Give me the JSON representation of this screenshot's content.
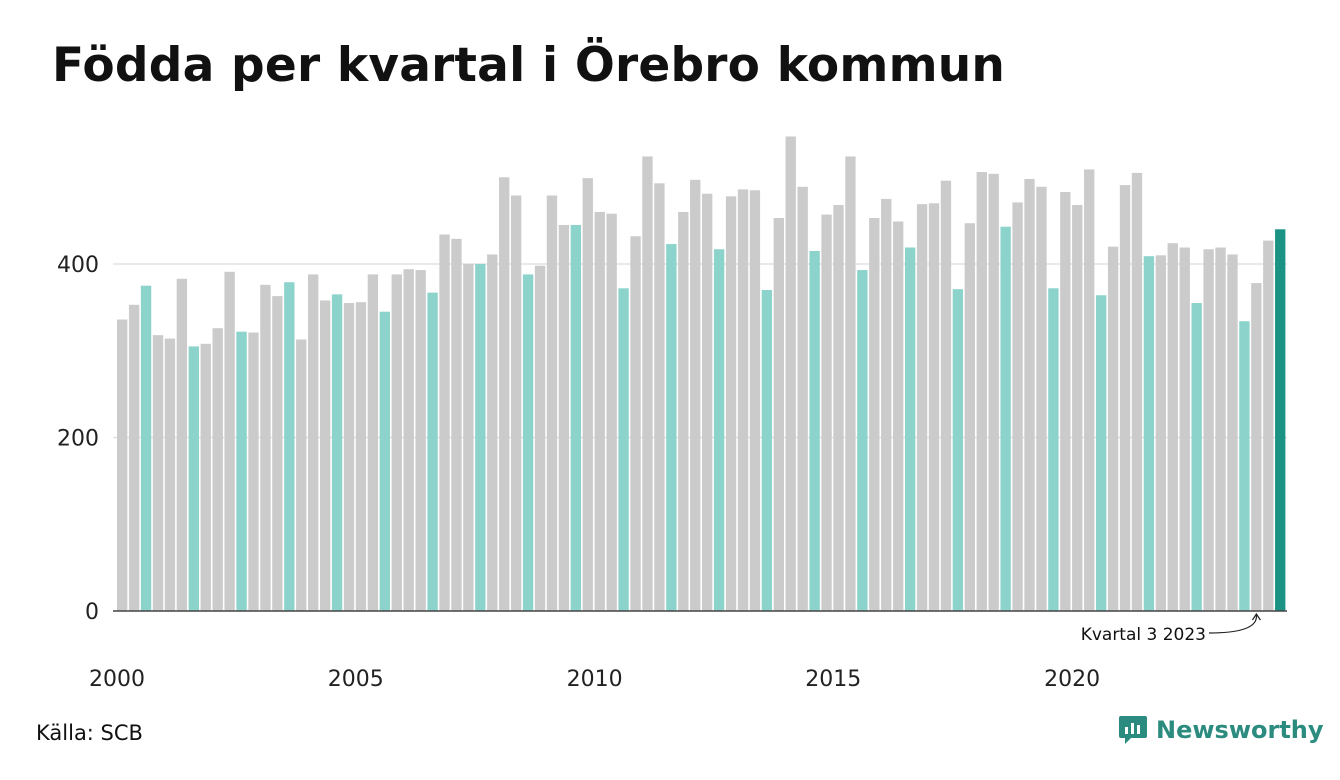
{
  "chart_data": {
    "type": "bar",
    "title": "Födda per kvartal i Örebro kommun",
    "source": "Källa: SCB",
    "ylim": [
      0,
      560
    ],
    "y_ticks": [
      0,
      200,
      400
    ],
    "x_tick_labels": [
      "2000",
      "2005",
      "2010",
      "2015",
      "2020"
    ],
    "grid": true,
    "annotation": {
      "text": "Kvartal 3 2023",
      "target_index": 95
    },
    "colors": {
      "grey": "#cbcbcb",
      "teal": "#8bd3cb",
      "highlight": "#1b9384",
      "axis": "#444444",
      "grid": "#e2e2e2"
    },
    "series": [
      {
        "name": "Födda",
        "values": [
          336,
          353,
          375,
          318,
          314,
          383,
          305,
          308,
          326,
          391,
          322,
          321,
          376,
          363,
          379,
          313,
          388,
          358,
          365,
          355,
          356,
          388,
          345,
          388,
          394,
          393,
          367,
          434,
          429,
          400,
          400,
          411,
          500,
          479,
          388,
          398,
          479,
          445,
          445,
          499,
          460,
          458,
          372,
          432,
          524,
          493,
          423,
          460,
          497,
          481,
          417,
          478,
          486,
          485,
          370,
          453,
          547,
          489,
          415,
          457,
          468,
          524,
          393,
          453,
          475,
          449,
          419,
          469,
          470,
          496,
          371,
          447,
          506,
          504,
          443,
          471,
          498,
          489,
          372,
          483,
          468,
          509,
          364,
          420,
          491,
          505,
          409,
          410,
          424,
          419,
          355,
          417,
          419,
          411,
          334,
          378,
          427,
          440
        ],
        "highlight_quarter_3": true
      }
    ]
  },
  "brand": {
    "name": "Newsworthy"
  }
}
